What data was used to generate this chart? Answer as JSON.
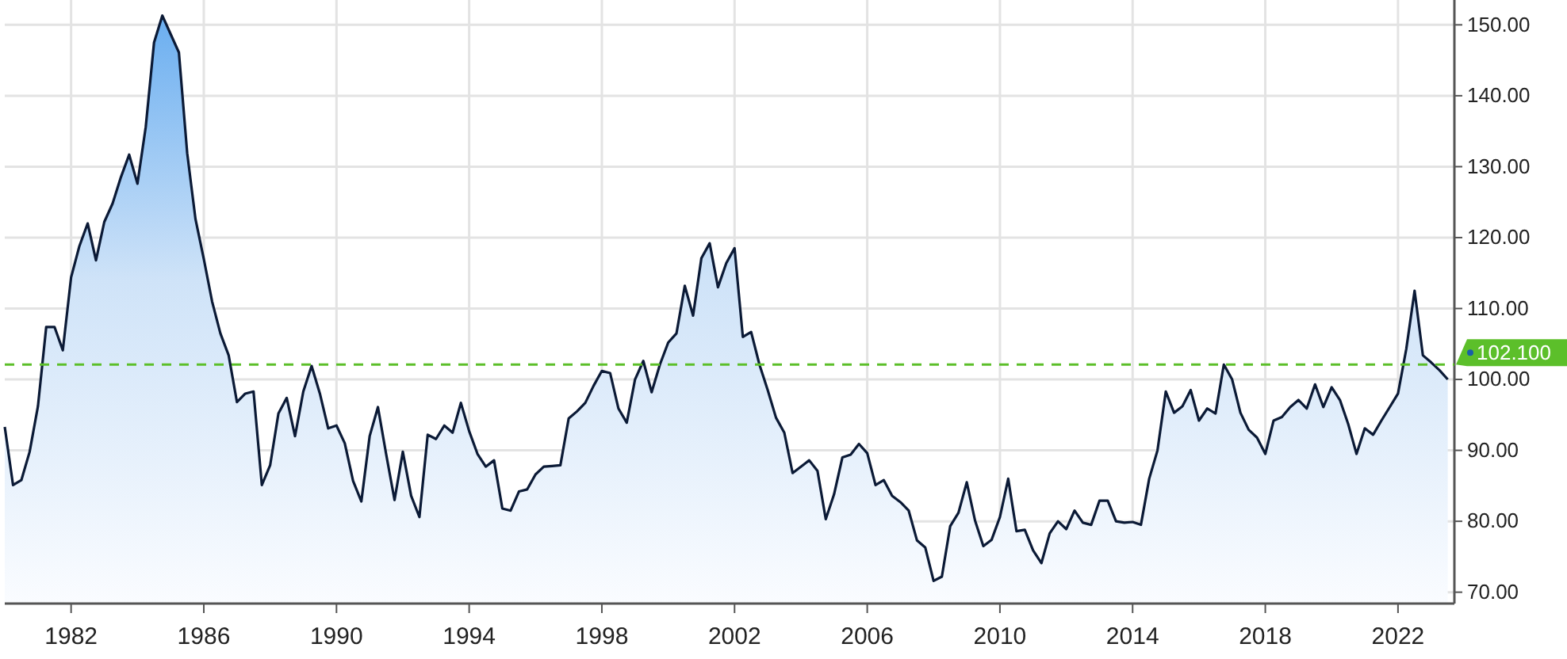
{
  "chart_data": {
    "type": "area",
    "x": [
      1980,
      1980.25,
      1980.5,
      1980.75,
      1981,
      1981.25,
      1981.5,
      1981.75,
      1982,
      1982.25,
      1982.5,
      1982.75,
      1983,
      1983.25,
      1983.5,
      1983.75,
      1984,
      1984.25,
      1984.5,
      1984.75,
      1985,
      1985.25,
      1985.5,
      1985.75,
      1986,
      1986.25,
      1986.5,
      1986.75,
      1987,
      1987.25,
      1987.5,
      1987.75,
      1988,
      1988.25,
      1988.5,
      1988.75,
      1989,
      1989.25,
      1989.5,
      1989.75,
      1990,
      1990.25,
      1990.5,
      1990.75,
      1991,
      1991.25,
      1991.5,
      1991.75,
      1992,
      1992.25,
      1992.5,
      1992.75,
      1993,
      1993.25,
      1993.5,
      1993.75,
      1994,
      1994.25,
      1994.5,
      1994.75,
      1995,
      1995.25,
      1995.5,
      1995.75,
      1996,
      1996.25,
      1996.5,
      1996.75,
      1997,
      1997.25,
      1997.5,
      1997.75,
      1998,
      1998.25,
      1998.5,
      1998.75,
      1999,
      1999.25,
      1999.5,
      1999.75,
      2000,
      2000.25,
      2000.5,
      2000.75,
      2001,
      2001.25,
      2001.5,
      2001.75,
      2002,
      2002.25,
      2002.5,
      2002.75,
      2003,
      2003.25,
      2003.5,
      2003.75,
      2004,
      2004.25,
      2004.5,
      2004.75,
      2005,
      2005.25,
      2005.5,
      2005.75,
      2006,
      2006.25,
      2006.5,
      2006.75,
      2007,
      2007.25,
      2007.5,
      2007.75,
      2008,
      2008.25,
      2008.5,
      2008.75,
      2009,
      2009.25,
      2009.5,
      2009.75,
      2010,
      2010.25,
      2010.5,
      2010.75,
      2011,
      2011.25,
      2011.5,
      2011.75,
      2012,
      2012.25,
      2012.5,
      2012.75,
      2013,
      2013.25,
      2013.5,
      2013.75,
      2014,
      2014.25,
      2014.5,
      2014.75,
      2015,
      2015.25,
      2015.5,
      2015.75,
      2016,
      2016.25,
      2016.5,
      2016.75,
      2017,
      2017.25,
      2017.5,
      2017.75,
      2018,
      2018.25,
      2018.5,
      2018.75,
      2019,
      2019.25,
      2019.5,
      2019.75,
      2020,
      2020.25,
      2020.5,
      2020.75,
      2021,
      2021.25,
      2021.5,
      2021.75,
      2022,
      2022.25,
      2022.5,
      2022.75,
      2023,
      2023.25,
      2023.5
    ],
    "series": [
      {
        "color": "#0b1a36",
        "values": [
          93.3,
          85.1,
          85.8,
          89.8,
          96.2,
          107.4,
          107.4,
          104.1,
          114.4,
          118.8,
          122.0,
          116.8,
          122.2,
          124.8,
          128.5,
          131.7,
          127.6,
          135.6,
          147.5,
          151.3,
          148.7,
          146.1,
          131.9,
          122.6,
          117.0,
          111.0,
          106.5,
          103.4,
          96.8,
          98.0,
          98.3,
          85.1,
          87.9,
          95.2,
          97.4,
          92.0,
          98.3,
          101.9,
          98.0,
          93.1,
          93.5,
          91.0,
          85.7,
          82.8,
          92.0,
          96.1,
          89.4,
          83.0,
          89.8,
          83.6,
          80.6,
          92.2,
          91.6,
          93.5,
          92.5,
          96.7,
          92.7,
          89.5,
          87.7,
          88.6,
          81.8,
          81.5,
          84.2,
          84.5,
          86.6,
          87.7,
          87.8,
          87.9,
          94.5,
          95.5,
          96.7,
          99.1,
          101.2,
          100.9,
          95.9,
          93.9,
          100.0,
          102.6,
          98.2,
          102.1,
          105.2,
          106.5,
          113.2,
          109.0,
          117.1,
          119.2,
          113.0,
          116.4,
          118.5,
          106.0,
          106.7,
          102.1,
          98.5,
          94.6,
          92.5,
          86.8,
          87.7,
          88.6,
          87.1,
          80.3,
          83.8,
          89.0,
          89.4,
          90.9,
          89.6,
          85.1,
          85.8,
          83.6,
          82.7,
          81.5,
          77.3,
          76.3,
          71.6,
          72.2,
          79.3,
          81.2,
          85.5,
          80.1,
          76.5,
          77.4,
          80.6,
          86.0,
          78.6,
          78.8,
          75.9,
          74.1,
          78.3,
          80.0,
          78.9,
          81.5,
          79.8,
          79.5,
          82.9,
          82.9,
          80.0,
          79.8,
          79.9,
          79.5,
          86.0,
          90.0,
          98.3,
          95.3,
          96.2,
          98.5,
          94.2,
          95.9,
          95.2,
          102.1,
          100.0,
          95.3,
          92.9,
          91.8,
          89.5,
          94.2,
          94.7,
          96.1,
          97.1,
          95.9,
          99.3,
          96.1,
          98.9,
          97.1,
          93.7,
          89.5,
          93.1,
          92.2,
          94.2,
          96.1,
          98.0,
          104.3,
          112.5,
          103.4,
          102.4,
          101.3,
          100.0
        ]
      }
    ],
    "xlim": [
      1980,
      2023.7
    ],
    "xticks": [
      1982,
      1986,
      1990,
      1994,
      1998,
      2002,
      2006,
      2010,
      2014,
      2018,
      2022
    ],
    "ylim": [
      68.4,
      153.5
    ],
    "yticks": [
      {
        "value": 70,
        "label": "70.00"
      },
      {
        "value": 80,
        "label": "80.00"
      },
      {
        "value": 90,
        "label": "90.00"
      },
      {
        "value": 100,
        "label": "100.00"
      },
      {
        "value": 110,
        "label": "110.00"
      },
      {
        "value": 120,
        "label": "120.00"
      },
      {
        "value": 130,
        "label": "130.00"
      },
      {
        "value": 140,
        "label": "140.00"
      },
      {
        "value": 150,
        "label": "150.00"
      }
    ],
    "ref_lines": [
      {
        "axis": "y",
        "value": 102.1,
        "label": "102.100",
        "color": "#5cbf2a",
        "line_style": "dashed"
      }
    ],
    "grid": true
  }
}
